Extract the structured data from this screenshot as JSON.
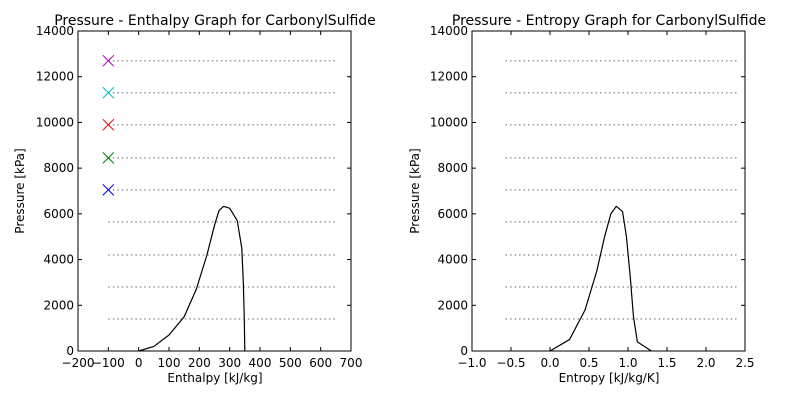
{
  "chart_data": [
    {
      "type": "line",
      "title": "Pressure - Enthalpy Graph for CarbonylSulfide",
      "xlabel": "Enthalpy [kJ/kg]",
      "ylabel": "Pressure [kPa]",
      "xlim": [
        -200,
        700
      ],
      "ylim": [
        0,
        14000
      ],
      "xticks": [
        "−200",
        "−100",
        "0",
        "100",
        "200",
        "300",
        "400",
        "500",
        "600",
        "700"
      ],
      "xtick_values": [
        -200,
        -100,
        0,
        100,
        200,
        300,
        400,
        500,
        600,
        700
      ],
      "yticks": [
        "0",
        "2000",
        "4000",
        "6000",
        "8000",
        "10000",
        "12000",
        "14000"
      ],
      "ytick_values": [
        0,
        2000,
        4000,
        6000,
        8000,
        10000,
        12000,
        14000
      ],
      "grid": false,
      "curve_color": "#000000",
      "dome": [
        [
          0,
          0
        ],
        [
          50,
          200
        ],
        [
          100,
          700
        ],
        [
          150,
          1500
        ],
        [
          190,
          2700
        ],
        [
          225,
          4200
        ],
        [
          250,
          5500
        ],
        [
          265,
          6150
        ],
        [
          280,
          6330
        ],
        [
          300,
          6250
        ],
        [
          325,
          5700
        ],
        [
          340,
          4500
        ],
        [
          345,
          3000
        ],
        [
          348,
          1500
        ],
        [
          350,
          0
        ]
      ],
      "isobar_color": "#999999",
      "isobars": [
        {
          "pressure": 1400,
          "x": [
            -100,
            650
          ]
        },
        {
          "pressure": 2800,
          "x": [
            -100,
            650
          ]
        },
        {
          "pressure": 4200,
          "x": [
            -100,
            650
          ]
        },
        {
          "pressure": 5650,
          "x": [
            -100,
            650
          ]
        },
        {
          "pressure": 7050,
          "x": [
            -100,
            650
          ]
        },
        {
          "pressure": 8450,
          "x": [
            -100,
            650
          ]
        },
        {
          "pressure": 9900,
          "x": [
            -100,
            650
          ]
        },
        {
          "pressure": 11300,
          "x": [
            -100,
            650
          ]
        },
        {
          "pressure": 12700,
          "x": [
            -100,
            650
          ]
        }
      ],
      "markers": [
        {
          "x": -100,
          "y": 7050,
          "color": "#0000ff"
        },
        {
          "x": -100,
          "y": 8450,
          "color": "#008000"
        },
        {
          "x": -100,
          "y": 9900,
          "color": "#ff0000"
        },
        {
          "x": -100,
          "y": 11300,
          "color": "#00bfbf"
        },
        {
          "x": -100,
          "y": 12700,
          "color": "#bf00bf"
        }
      ]
    },
    {
      "type": "line",
      "title": "Pressure - Entropy Graph for CarbonylSulfide",
      "xlabel": "Entropy [kJ/kg/K]",
      "ylabel": "Pressure [kPa]",
      "xlim": [
        -1.0,
        2.5
      ],
      "ylim": [
        0,
        14000
      ],
      "xticks": [
        "−1.0",
        "−0.5",
        "0.0",
        "0.5",
        "1.0",
        "1.5",
        "2.0",
        "2.5"
      ],
      "xtick_values": [
        -1.0,
        -0.5,
        0.0,
        0.5,
        1.0,
        1.5,
        2.0,
        2.5
      ],
      "yticks": [
        "0",
        "2000",
        "4000",
        "6000",
        "8000",
        "10000",
        "12000",
        "14000"
      ],
      "ytick_values": [
        0,
        2000,
        4000,
        6000,
        8000,
        10000,
        12000,
        14000
      ],
      "grid": false,
      "curve_color": "#000000",
      "dome": [
        [
          0.0,
          0
        ],
        [
          0.25,
          500
        ],
        [
          0.45,
          1800
        ],
        [
          0.6,
          3500
        ],
        [
          0.7,
          5000
        ],
        [
          0.78,
          6000
        ],
        [
          0.85,
          6330
        ],
        [
          0.93,
          6100
        ],
        [
          0.98,
          5000
        ],
        [
          1.03,
          3200
        ],
        [
          1.07,
          1500
        ],
        [
          1.12,
          400
        ],
        [
          1.3,
          0
        ]
      ],
      "isobar_color": "#999999",
      "isobars": [
        {
          "pressure": 1400,
          "x": [
            -0.57,
            2.43
          ]
        },
        {
          "pressure": 2800,
          "x": [
            -0.57,
            2.43
          ]
        },
        {
          "pressure": 4200,
          "x": [
            -0.57,
            2.43
          ]
        },
        {
          "pressure": 5650,
          "x": [
            -0.57,
            2.43
          ]
        },
        {
          "pressure": 7050,
          "x": [
            -0.57,
            2.43
          ]
        },
        {
          "pressure": 8450,
          "x": [
            -0.57,
            2.43
          ]
        },
        {
          "pressure": 9900,
          "x": [
            -0.57,
            2.43
          ]
        },
        {
          "pressure": 11300,
          "x": [
            -0.57,
            2.43
          ]
        },
        {
          "pressure": 12700,
          "x": [
            -0.57,
            2.43
          ]
        }
      ],
      "markers": []
    }
  ]
}
